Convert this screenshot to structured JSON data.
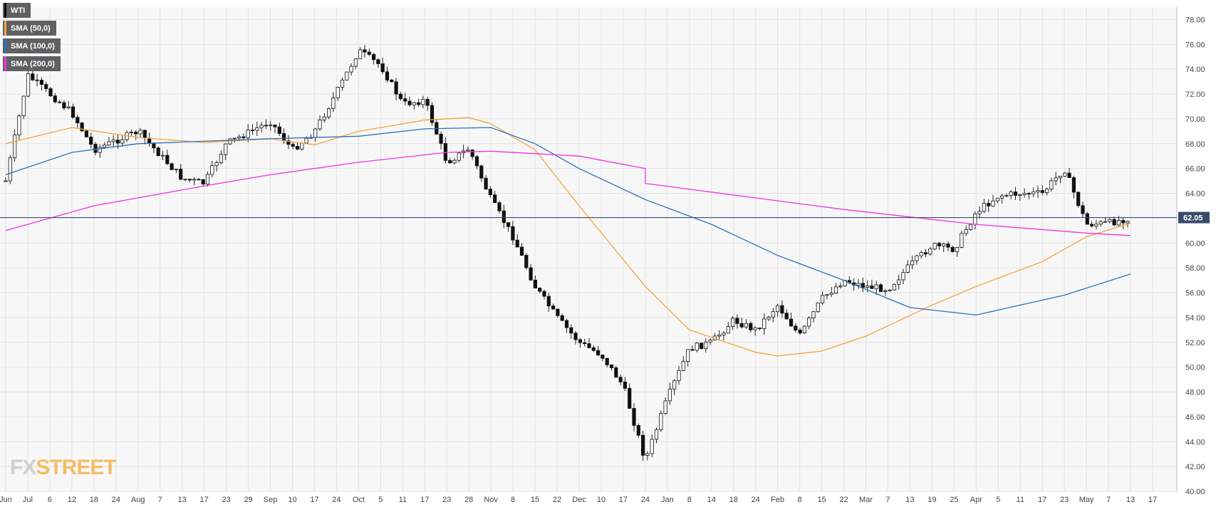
{
  "legend": [
    {
      "label": "WTI",
      "color": "#000000"
    },
    {
      "label": "SMA (50,0)",
      "color": "#f7a23b"
    },
    {
      "label": "SMA (100,0)",
      "color": "#2c6fbb"
    },
    {
      "label": "SMA (200,0)",
      "color": "#f032e6"
    }
  ],
  "logo": {
    "part1": "FX",
    "part2": "STREET"
  },
  "last_price": {
    "value": 62.05,
    "label": "62.05"
  },
  "chart_data": {
    "type": "line",
    "title": "",
    "xlabel": "",
    "ylabel": "",
    "instrument": "WTI",
    "ylim": [
      40,
      79
    ],
    "y_ticks": [
      "40.00",
      "42.00",
      "44.00",
      "46.00",
      "48.00",
      "50.00",
      "52.00",
      "54.00",
      "56.00",
      "58.00",
      "60.00",
      "62.00",
      "64.00",
      "66.00",
      "68.00",
      "70.00",
      "72.00",
      "74.00",
      "76.00",
      "78.00"
    ],
    "x_ticks": [
      "Jun",
      "Jul",
      "6",
      "12",
      "18",
      "24",
      "Aug",
      "7",
      "13",
      "17",
      "23",
      "29",
      "Sep",
      "10",
      "17",
      "24",
      "Oct",
      "5",
      "11",
      "17",
      "23",
      "28",
      "Nov",
      "8",
      "15",
      "22",
      "Dec",
      "10",
      "17",
      "24",
      "Jan",
      "8",
      "14",
      "18",
      "24",
      "Feb",
      "8",
      "15",
      "22",
      "Mar",
      "7",
      "13",
      "19",
      "25",
      "Apr",
      "5",
      "11",
      "17",
      "23",
      "May",
      "7",
      "13",
      "17"
    ],
    "grid": true,
    "close_series": [
      {
        "x": "Jun",
        "y": 65.0
      },
      {
        "x": "Jul",
        "y": 73.5
      },
      {
        "x": "12",
        "y": 70.5
      },
      {
        "x": "18",
        "y": 67.5
      },
      {
        "x": "Aug",
        "y": 69.0
      },
      {
        "x": "13",
        "y": 65.2
      },
      {
        "x": "17",
        "y": 64.8
      },
      {
        "x": "23",
        "y": 68.0
      },
      {
        "x": "Sep",
        "y": 69.8
      },
      {
        "x": "10",
        "y": 67.5
      },
      {
        "x": "17",
        "y": 69.0
      },
      {
        "x": "24",
        "y": 72.1
      },
      {
        "x": "Oct",
        "y": 75.5
      },
      {
        "x": "5",
        "y": 74.3
      },
      {
        "x": "11",
        "y": 71.2
      },
      {
        "x": "17",
        "y": 71.5
      },
      {
        "x": "23",
        "y": 66.5
      },
      {
        "x": "28",
        "y": 67.6
      },
      {
        "x": "Nov",
        "y": 63.5
      },
      {
        "x": "8",
        "y": 60.5
      },
      {
        "x": "15",
        "y": 56.5
      },
      {
        "x": "22",
        "y": 54.0
      },
      {
        "x": "Dec",
        "y": 52.0
      },
      {
        "x": "10",
        "y": 51.0
      },
      {
        "x": "17",
        "y": 48.5
      },
      {
        "x": "24",
        "y": 42.5
      },
      {
        "x": "Jan",
        "y": 47.5
      },
      {
        "x": "8",
        "y": 51.5
      },
      {
        "x": "14",
        "y": 52.0
      },
      {
        "x": "18",
        "y": 53.8
      },
      {
        "x": "24",
        "y": 53.0
      },
      {
        "x": "Feb",
        "y": 55.0
      },
      {
        "x": "8",
        "y": 52.5
      },
      {
        "x": "15",
        "y": 55.5
      },
      {
        "x": "22",
        "y": 57.0
      },
      {
        "x": "Mar",
        "y": 56.5
      },
      {
        "x": "7",
        "y": 56.3
      },
      {
        "x": "13",
        "y": 58.2
      },
      {
        "x": "19",
        "y": 59.8
      },
      {
        "x": "25",
        "y": 59.5
      },
      {
        "x": "Apr",
        "y": 62.5
      },
      {
        "x": "5",
        "y": 63.8
      },
      {
        "x": "11",
        "y": 64.0
      },
      {
        "x": "17",
        "y": 64.0
      },
      {
        "x": "23",
        "y": 66.0
      },
      {
        "x": "May",
        "y": 61.5
      },
      {
        "x": "7",
        "y": 61.6
      },
      {
        "x": "13",
        "y": 62.05
      }
    ],
    "series": [
      {
        "name": "SMA (50,0)",
        "color": "#f7a23b",
        "values": [
          {
            "x": "Jun",
            "y": 68.0
          },
          {
            "x": "12",
            "y": 69.3
          },
          {
            "x": "Aug",
            "y": 68.5
          },
          {
            "x": "17",
            "y": 68.1
          },
          {
            "x": "Sep",
            "y": 68.4
          },
          {
            "x": "17",
            "y": 67.9
          },
          {
            "x": "Oct",
            "y": 69.0
          },
          {
            "x": "17",
            "y": 69.9
          },
          {
            "x": "28",
            "y": 70.1
          },
          {
            "x": "Nov",
            "y": 69.6
          },
          {
            "x": "15",
            "y": 67.5
          },
          {
            "x": "Dec",
            "y": 63.0
          },
          {
            "x": "24",
            "y": 56.5
          },
          {
            "x": "8",
            "y": 53.0
          },
          {
            "x": "24",
            "y": 51.2
          },
          {
            "x": "Feb",
            "y": 50.9
          },
          {
            "x": "15",
            "y": 51.3
          },
          {
            "x": "Mar",
            "y": 52.5
          },
          {
            "x": "19",
            "y": 55.0
          },
          {
            "x": "Apr",
            "y": 56.5
          },
          {
            "x": "17",
            "y": 58.5
          },
          {
            "x": "May",
            "y": 60.5
          },
          {
            "x": "13",
            "y": 61.6
          }
        ]
      },
      {
        "name": "SMA (100,0)",
        "color": "#2c6fbb",
        "values": [
          {
            "x": "Jun",
            "y": 65.5
          },
          {
            "x": "12",
            "y": 67.3
          },
          {
            "x": "Aug",
            "y": 68.0
          },
          {
            "x": "Sep",
            "y": 68.4
          },
          {
            "x": "Oct",
            "y": 68.6
          },
          {
            "x": "17",
            "y": 69.2
          },
          {
            "x": "Nov",
            "y": 69.3
          },
          {
            "x": "15",
            "y": 68.0
          },
          {
            "x": "Dec",
            "y": 66.0
          },
          {
            "x": "24",
            "y": 63.5
          },
          {
            "x": "14",
            "y": 61.5
          },
          {
            "x": "Feb",
            "y": 59.0
          },
          {
            "x": "22",
            "y": 57.0
          },
          {
            "x": "13",
            "y": 54.8
          },
          {
            "x": "Apr",
            "y": 54.2
          },
          {
            "x": "23",
            "y": 55.8
          },
          {
            "x": "13",
            "y": 57.5
          }
        ]
      },
      {
        "name": "SMA (200,0)",
        "color": "#f032e6",
        "values": [
          {
            "x": "Jun",
            "y": 61.0
          },
          {
            "x": "18",
            "y": 63.0
          },
          {
            "x": "17",
            "y": 64.6
          },
          {
            "x": "Sep",
            "y": 65.5
          },
          {
            "x": "Oct",
            "y": 66.5
          },
          {
            "x": "23",
            "y": 67.3
          },
          {
            "x": "Nov",
            "y": 67.4
          },
          {
            "x": "Dec",
            "y": 67.0
          },
          {
            "x": "24",
            "y": 66.0
          },
          {
            "x": "24",
            "y": 64.8
          },
          {
            "x": "22",
            "y": 62.7
          },
          {
            "x": "Apr",
            "y": 61.5
          },
          {
            "x": "May",
            "y": 60.8
          },
          {
            "x": "13",
            "y": 60.6
          }
        ]
      }
    ]
  }
}
